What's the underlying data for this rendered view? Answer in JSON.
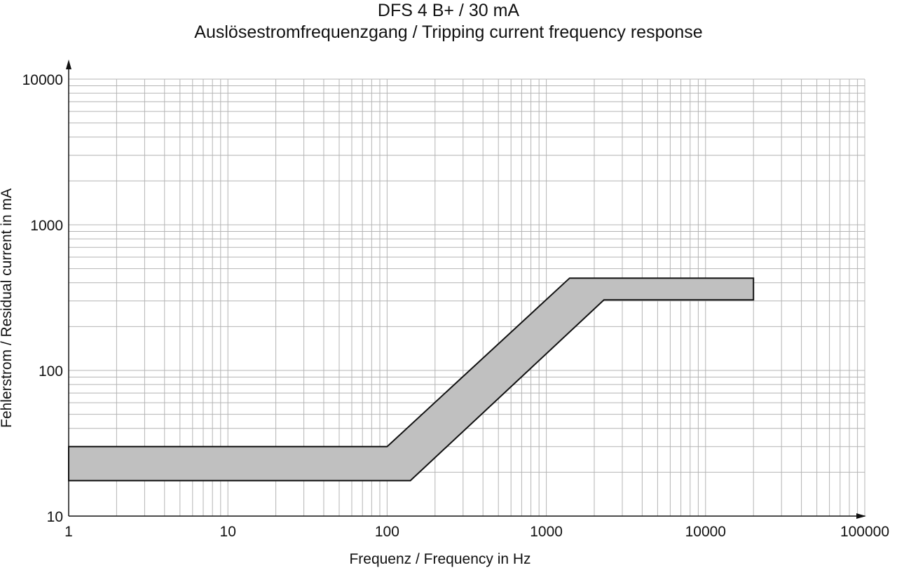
{
  "chart_data": {
    "type": "area",
    "title": "DFS 4 B+ / 30 mA",
    "subtitle": "Auslösestromfrequenzgang / Tripping current frequency response",
    "xlabel": "Frequenz /  Frequency in Hz",
    "ylabel": "Fehlerstrom /  Residual current in mA",
    "xscale": "log",
    "yscale": "log",
    "xlim": [
      1,
      100000
    ],
    "ylim": [
      10,
      10000
    ],
    "grid": true,
    "x_ticks": [
      "1",
      "10",
      "100",
      "1000",
      "10000",
      "100000"
    ],
    "y_ticks": [
      "10",
      "100",
      "1000",
      "10000"
    ],
    "band": {
      "upper": [
        [
          1,
          30
        ],
        [
          100,
          30
        ],
        [
          1400,
          430
        ],
        [
          20000,
          430
        ]
      ],
      "lower": [
        [
          1,
          17.5
        ],
        [
          140,
          17.5
        ],
        [
          2300,
          305
        ],
        [
          20000,
          305
        ]
      ],
      "fill": "#c0c0c0",
      "stroke": "#111111"
    }
  }
}
